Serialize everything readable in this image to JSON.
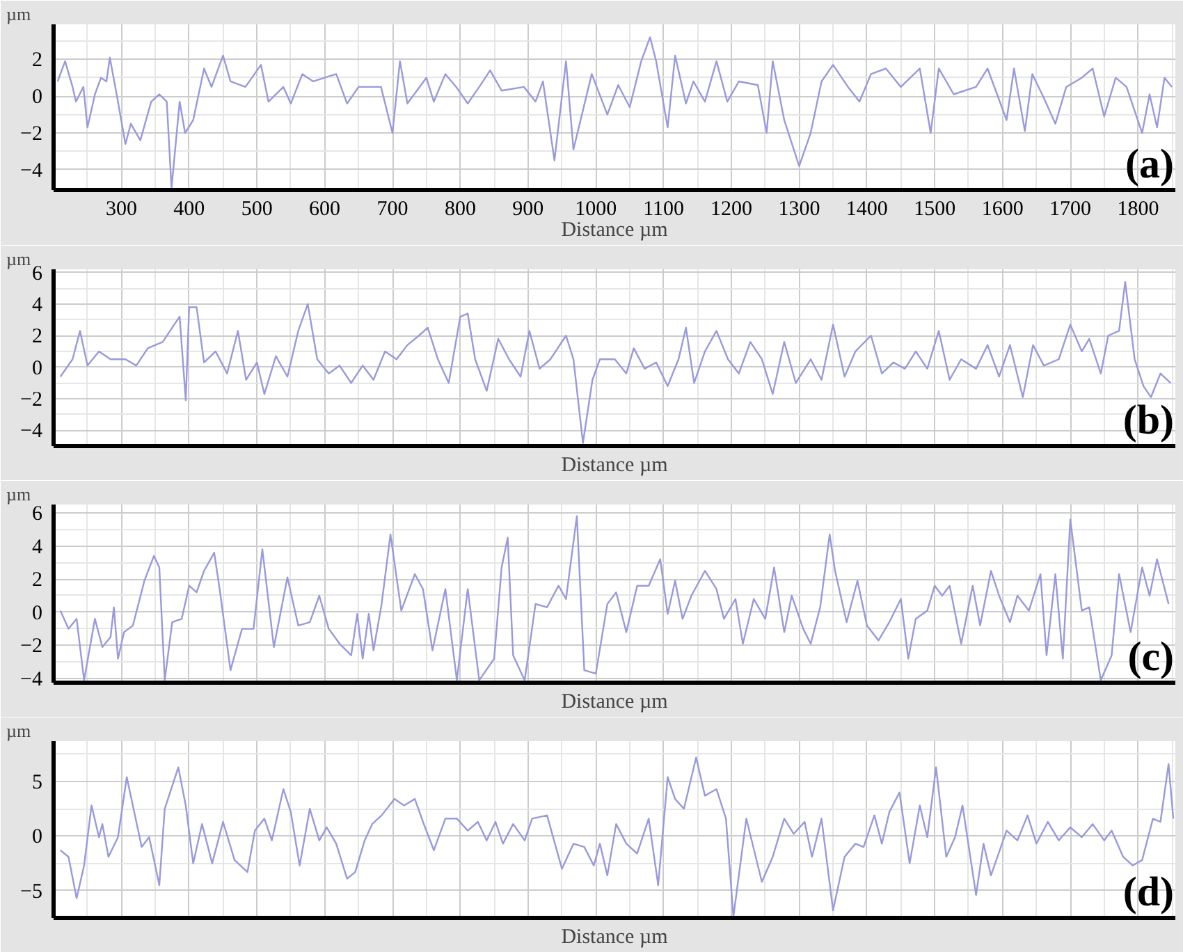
{
  "chart_data": [
    {
      "type": "line",
      "ylabel": "µm",
      "xlabel": "Distance µm",
      "annotations": [
        "(a)"
      ],
      "grid": true,
      "xlim": [
        200,
        1855
      ],
      "ylim": [
        -5.1,
        3.9
      ],
      "xticks": [
        300,
        400,
        500,
        600,
        700,
        800,
        900,
        1000,
        1100,
        1200,
        1300,
        1400,
        1500,
        1600,
        1700,
        1800
      ],
      "yticks": [
        -4,
        -2,
        0,
        2
      ],
      "x": [
        206,
        217,
        228,
        233,
        244,
        250,
        261,
        270,
        278,
        283,
        294,
        306,
        314,
        328,
        344,
        356,
        367,
        374,
        386,
        394,
        406,
        422,
        433,
        450,
        461,
        483,
        506,
        517,
        539,
        550,
        567,
        583,
        617,
        633,
        650,
        683,
        700,
        711,
        722,
        750,
        761,
        778,
        794,
        811,
        828,
        844,
        861,
        894,
        911,
        922,
        939,
        956,
        967,
        994,
        1017,
        1033,
        1050,
        1067,
        1080,
        1089,
        1106,
        1117,
        1133,
        1144,
        1161,
        1178,
        1194,
        1211,
        1239,
        1252,
        1261,
        1278,
        1300,
        1317,
        1333,
        1350,
        1372,
        1389,
        1406,
        1428,
        1450,
        1478,
        1494,
        1506,
        1528,
        1561,
        1578,
        1606,
        1617,
        1633,
        1644,
        1661,
        1678,
        1694,
        1717,
        1733,
        1750,
        1767,
        1783,
        1806,
        1817,
        1828,
        1839,
        1850
      ],
      "series": [
        {
          "color": "#9999dd",
          "values": [
            0.8,
            1.9,
            0.5,
            -0.3,
            0.5,
            -1.7,
            0.1,
            1.0,
            0.8,
            2.1,
            -0.1,
            -2.6,
            -1.5,
            -2.4,
            -0.3,
            0.1,
            -0.3,
            -5.0,
            -0.3,
            -2.0,
            -1.3,
            1.5,
            0.5,
            2.2,
            0.8,
            0.5,
            1.7,
            -0.3,
            0.5,
            -0.4,
            1.2,
            0.8,
            1.2,
            -0.4,
            0.5,
            0.5,
            -2.0,
            1.9,
            -0.4,
            1.0,
            -0.3,
            1.2,
            0.5,
            -0.4,
            0.5,
            1.4,
            0.3,
            0.5,
            -0.3,
            0.8,
            -3.5,
            1.9,
            -2.9,
            1.2,
            -1.0,
            0.6,
            -0.6,
            1.9,
            3.2,
            1.9,
            -1.7,
            2.2,
            -0.4,
            0.8,
            -0.3,
            1.9,
            -0.3,
            0.8,
            0.6,
            -2.0,
            1.9,
            -1.3,
            -3.8,
            -2.0,
            0.8,
            1.7,
            0.5,
            -0.3,
            1.2,
            1.5,
            0.5,
            1.5,
            -2.0,
            1.5,
            0.1,
            0.5,
            1.5,
            -1.3,
            1.5,
            -1.9,
            1.2,
            -0.1,
            -1.5,
            0.5,
            1.0,
            1.5,
            -1.1,
            1.0,
            0.5,
            -2.0,
            0.1,
            -1.7,
            1.0,
            0.5
          ]
        }
      ]
    },
    {
      "type": "line",
      "ylabel": "µm",
      "xlabel": "Distance µm",
      "annotations": [
        "(b)"
      ],
      "grid": true,
      "tick_labels": "y",
      "xlim": [
        200,
        1855
      ],
      "ylim": [
        -5,
        6.2
      ],
      "xticks": [
        300,
        400,
        500,
        600,
        700,
        800,
        900,
        1000,
        1100,
        1200,
        1300,
        1400,
        1500,
        1600,
        1700,
        1800
      ],
      "yticks": [
        -4,
        -2,
        0,
        2,
        4,
        6
      ],
      "x": [
        210,
        228,
        239,
        250,
        267,
        284,
        306,
        322,
        339,
        361,
        378,
        386,
        395,
        400,
        411,
        422,
        439,
        456,
        472,
        484,
        500,
        511,
        528,
        545,
        561,
        575,
        589,
        606,
        622,
        639,
        656,
        672,
        689,
        706,
        722,
        739,
        752,
        767,
        783,
        800,
        811,
        822,
        839,
        856,
        872,
        889,
        902,
        917,
        933,
        956,
        967,
        981,
        995,
        1006,
        1028,
        1045,
        1056,
        1072,
        1089,
        1106,
        1122,
        1133,
        1145,
        1161,
        1178,
        1195,
        1211,
        1228,
        1245,
        1261,
        1278,
        1295,
        1317,
        1333,
        1350,
        1367,
        1383,
        1406,
        1422,
        1439,
        1456,
        1472,
        1489,
        1506,
        1522,
        1539,
        1561,
        1578,
        1595,
        1611,
        1630,
        1645,
        1661,
        1683,
        1700,
        1717,
        1728,
        1745,
        1756,
        1772,
        1781,
        1795,
        1808,
        1819,
        1833,
        1848
      ],
      "series": [
        {
          "color": "#9999dd",
          "values": [
            -0.6,
            0.5,
            2.3,
            0.1,
            1.0,
            0.5,
            0.5,
            0.1,
            1.2,
            1.6,
            2.7,
            3.2,
            -2.1,
            3.8,
            3.8,
            0.3,
            1.0,
            -0.4,
            2.3,
            -0.8,
            0.3,
            -1.7,
            0.7,
            -0.6,
            2.3,
            4.0,
            0.5,
            -0.4,
            0.1,
            -1.0,
            0.1,
            -0.8,
            1.0,
            0.5,
            1.4,
            2.0,
            2.5,
            0.5,
            -1.0,
            3.2,
            3.4,
            0.5,
            -1.5,
            1.8,
            0.5,
            -0.6,
            2.3,
            -0.1,
            0.5,
            2.0,
            0.5,
            -4.8,
            -0.8,
            0.5,
            0.5,
            -0.4,
            1.2,
            -0.1,
            0.3,
            -1.2,
            0.5,
            2.5,
            -1.0,
            1.0,
            2.3,
            0.5,
            -0.4,
            1.6,
            0.5,
            -1.7,
            1.6,
            -1.0,
            0.5,
            -0.8,
            2.7,
            -0.6,
            1.0,
            2.0,
            -0.4,
            0.3,
            -0.1,
            1.0,
            -0.1,
            2.3,
            -0.8,
            0.5,
            -0.1,
            1.4,
            -0.6,
            1.4,
            -1.9,
            1.4,
            0.1,
            0.5,
            2.7,
            1.0,
            1.8,
            -0.4,
            2.0,
            2.3,
            5.4,
            0.5,
            -1.2,
            -1.9,
            -0.4,
            -1.0
          ]
        }
      ]
    },
    {
      "type": "line",
      "ylabel": "µm",
      "xlabel": "Distance µm",
      "annotations": [
        "(c)"
      ],
      "grid": true,
      "tick_labels": "y",
      "xlim": [
        200,
        1855
      ],
      "ylim": [
        -4.25,
        6.5
      ],
      "xticks": [
        300,
        400,
        500,
        600,
        700,
        800,
        900,
        1000,
        1100,
        1200,
        1300,
        1400,
        1500,
        1600,
        1700,
        1800
      ],
      "yticks": [
        -4,
        -2,
        0,
        2,
        4,
        6
      ],
      "x": [
        210,
        222,
        234,
        245,
        261,
        272,
        284,
        289,
        295,
        304,
        317,
        334,
        348,
        356,
        364,
        375,
        389,
        400,
        411,
        422,
        437,
        445,
        461,
        478,
        495,
        508,
        525,
        545,
        561,
        578,
        592,
        606,
        622,
        639,
        648,
        656,
        665,
        672,
        684,
        697,
        713,
        733,
        745,
        759,
        778,
        795,
        811,
        828,
        850,
        861,
        870,
        878,
        895,
        911,
        928,
        945,
        956,
        972,
        983,
        1000,
        1017,
        1030,
        1045,
        1061,
        1078,
        1095,
        1106,
        1117,
        1128,
        1141,
        1161,
        1178,
        1189,
        1206,
        1217,
        1233,
        1250,
        1263,
        1278,
        1289,
        1306,
        1317,
        1331,
        1345,
        1353,
        1370,
        1386,
        1400,
        1417,
        1433,
        1450,
        1461,
        1472,
        1489,
        1500,
        1511,
        1522,
        1539,
        1556,
        1567,
        1583,
        1595,
        1611,
        1622,
        1639,
        1656,
        1665,
        1678,
        1689,
        1700,
        1717,
        1728,
        1745,
        1761,
        1772,
        1789,
        1806,
        1817,
        1828,
        1845
      ],
      "series": [
        {
          "color": "#9999dd",
          "values": [
            0.1,
            -1.0,
            -0.4,
            -4.1,
            -0.4,
            -2.1,
            -1.5,
            0.3,
            -2.8,
            -1.2,
            -0.8,
            1.9,
            3.4,
            2.7,
            -4.1,
            -0.6,
            -0.4,
            1.6,
            1.2,
            2.5,
            3.6,
            1.4,
            -3.5,
            -1.0,
            -1.0,
            3.8,
            -2.1,
            2.1,
            -0.8,
            -0.6,
            1.0,
            -1.0,
            -1.9,
            -2.6,
            -0.1,
            -2.8,
            -0.1,
            -2.3,
            0.5,
            4.7,
            0.1,
            2.3,
            1.4,
            -2.3,
            1.4,
            -4.1,
            1.4,
            -4.1,
            -2.8,
            2.7,
            4.5,
            -2.6,
            -4.1,
            0.5,
            0.3,
            1.6,
            0.8,
            5.8,
            -3.5,
            -3.7,
            0.5,
            1.2,
            -1.2,
            1.6,
            1.6,
            3.2,
            -0.1,
            1.9,
            -0.4,
            1.0,
            2.5,
            1.4,
            -0.4,
            0.8,
            -1.9,
            0.8,
            -0.4,
            2.7,
            -1.2,
            1.0,
            -1.0,
            -1.9,
            0.3,
            4.7,
            2.5,
            -0.6,
            1.9,
            -0.8,
            -1.7,
            -0.6,
            0.8,
            -2.8,
            -0.4,
            0.1,
            1.6,
            1.0,
            1.6,
            -1.9,
            1.6,
            -0.8,
            2.5,
            1.0,
            -0.6,
            1.0,
            0.1,
            2.3,
            -2.6,
            2.3,
            -2.8,
            5.6,
            0.1,
            0.3,
            -4.1,
            -2.6,
            2.3,
            -1.2,
            2.7,
            1.0,
            3.2,
            0.5
          ]
        }
      ]
    },
    {
      "type": "line",
      "ylabel": "µm",
      "xlabel": "Distance µm",
      "annotations": [
        "(d)"
      ],
      "grid": true,
      "tick_labels": "y",
      "xlim": [
        200,
        1855
      ],
      "ylim": [
        -7.5,
        8.7
      ],
      "xticks": [
        300,
        400,
        500,
        600,
        700,
        800,
        900,
        1000,
        1100,
        1200,
        1300,
        1400,
        1500,
        1600,
        1700,
        1800
      ],
      "yticks": [
        -5,
        0,
        5
      ],
      "x": [
        210,
        222,
        234,
        245,
        256,
        267,
        272,
        281,
        295,
        308,
        319,
        330,
        341,
        356,
        364,
        384,
        395,
        406,
        419,
        434,
        450,
        467,
        486,
        497,
        511,
        522,
        539,
        550,
        563,
        578,
        592,
        603,
        617,
        633,
        645,
        659,
        670,
        684,
        703,
        717,
        733,
        745,
        761,
        778,
        795,
        811,
        826,
        839,
        852,
        863,
        878,
        895,
        906,
        928,
        950,
        967,
        983,
        997,
        1006,
        1017,
        1030,
        1045,
        1061,
        1078,
        1092,
        1106,
        1117,
        1130,
        1148,
        1161,
        1178,
        1192,
        1203,
        1222,
        1245,
        1261,
        1278,
        1292,
        1308,
        1319,
        1333,
        1350,
        1367,
        1383,
        1395,
        1411,
        1422,
        1433,
        1448,
        1463,
        1478,
        1489,
        1502,
        1517,
        1530,
        1541,
        1561,
        1572,
        1583,
        1606,
        1622,
        1637,
        1650,
        1667,
        1683,
        1700,
        1717,
        1733,
        1750,
        1761,
        1778,
        1792,
        1806,
        1822,
        1833,
        1845,
        1852
      ],
      "series": [
        {
          "color": "#9999dd",
          "values": [
            -1.3,
            -1.9,
            -5.7,
            -2.7,
            2.8,
            -0.1,
            1.1,
            -1.9,
            -0.1,
            5.4,
            2.2,
            -1.0,
            -0.1,
            -4.5,
            2.5,
            6.3,
            2.8,
            -2.5,
            1.1,
            -2.5,
            1.3,
            -2.2,
            -3.3,
            0.5,
            1.6,
            -0.4,
            4.3,
            2.2,
            -2.7,
            2.5,
            -0.4,
            0.8,
            -0.7,
            -3.9,
            -3.3,
            -0.4,
            1.1,
            1.9,
            3.4,
            2.8,
            3.4,
            1.3,
            -1.3,
            1.6,
            1.6,
            0.5,
            1.3,
            -0.4,
            1.3,
            -0.7,
            1.1,
            -0.4,
            1.6,
            1.9,
            -3.0,
            -0.7,
            -1.0,
            -2.7,
            -0.7,
            -3.6,
            1.1,
            -0.7,
            -1.6,
            1.6,
            -4.5,
            5.4,
            3.4,
            2.5,
            7.2,
            3.7,
            4.3,
            1.6,
            -7.4,
            1.6,
            -4.2,
            -1.9,
            1.6,
            0.2,
            1.3,
            -1.9,
            1.6,
            -6.8,
            -1.9,
            -0.7,
            -1.0,
            1.9,
            -0.7,
            2.2,
            4.0,
            -2.5,
            2.8,
            -0.1,
            6.3,
            -1.9,
            -0.1,
            2.8,
            -5.4,
            -0.7,
            -3.6,
            0.5,
            -0.4,
            1.9,
            -0.7,
            1.3,
            -0.4,
            0.8,
            -0.1,
            1.1,
            -0.4,
            0.5,
            -1.9,
            -2.7,
            -2.2,
            1.6,
            1.3,
            6.6,
            1.6
          ]
        }
      ]
    }
  ]
}
